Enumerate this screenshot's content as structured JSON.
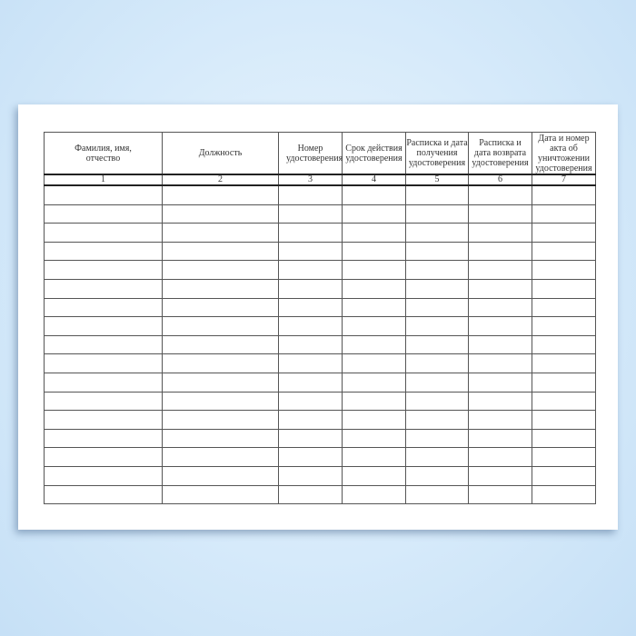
{
  "table": {
    "columns": [
      {
        "header": "Фамилия, имя, отчество",
        "number": "1"
      },
      {
        "header": "Должность",
        "number": "2"
      },
      {
        "header": "Номер удостоверения",
        "number": "3"
      },
      {
        "header": "Срок действия удостоверения",
        "number": "4"
      },
      {
        "header": "Расписка и дата получения удостоверения",
        "number": "5"
      },
      {
        "header": "Расписка и дата возврата удостоверения",
        "number": "6"
      },
      {
        "header": "Дата и номер акта об уничтожении удостоверения",
        "number": "7"
      }
    ],
    "empty_rows": 17
  }
}
